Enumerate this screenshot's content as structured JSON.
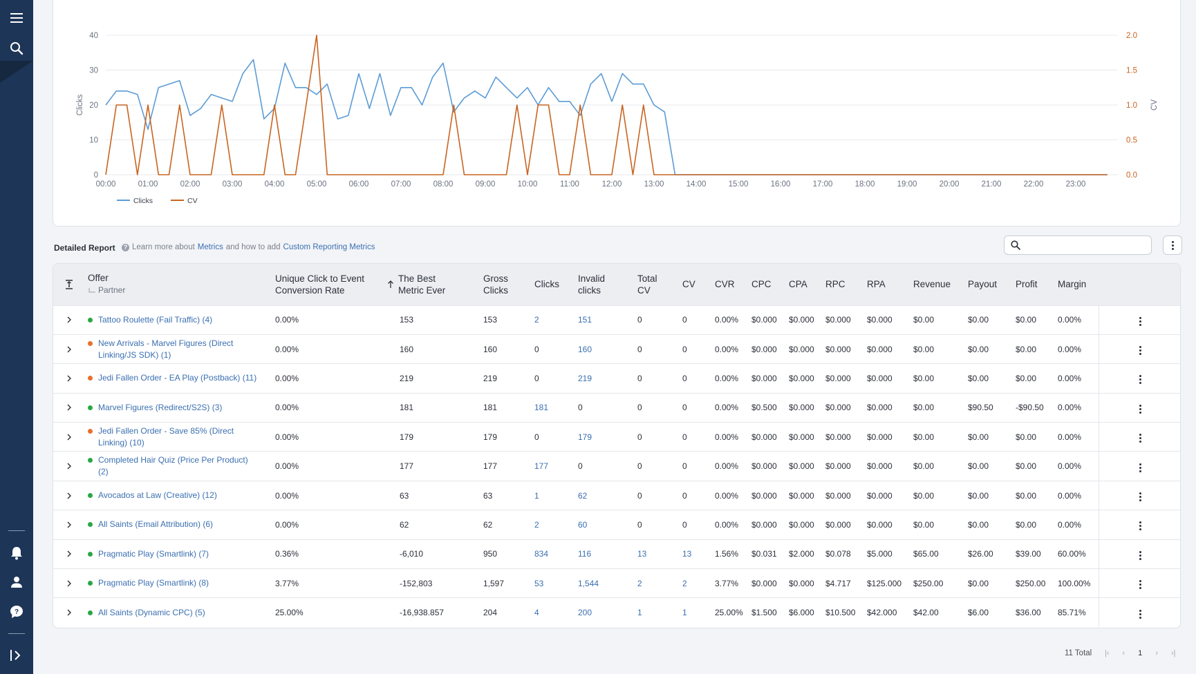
{
  "colors": {
    "sidebar": "#1d3557",
    "clicks_line": "#5b9bd5",
    "cv_line": "#c8641f",
    "link": "#3a6fb0",
    "status_green": "#28a745",
    "status_orange": "#e8702a"
  },
  "sidebar": {
    "icons": [
      "hamburger-menu-icon",
      "search-icon",
      "bell-icon",
      "user-icon",
      "help-icon",
      "expand-sidebar-icon"
    ]
  },
  "chart_data": {
    "type": "line",
    "x": [
      "00:00",
      "00:15",
      "00:30",
      "00:45",
      "01:00",
      "01:15",
      "01:30",
      "01:45",
      "02:00",
      "02:15",
      "02:30",
      "02:45",
      "03:00",
      "03:15",
      "03:30",
      "03:45",
      "04:00",
      "04:15",
      "04:30",
      "04:45",
      "05:00",
      "05:15",
      "05:30",
      "05:45",
      "06:00",
      "06:15",
      "06:30",
      "06:45",
      "07:00",
      "07:15",
      "07:30",
      "07:45",
      "08:00",
      "08:15",
      "08:30",
      "08:45",
      "09:00",
      "09:15",
      "09:30",
      "09:45",
      "10:00",
      "10:15",
      "10:30",
      "10:45",
      "11:00",
      "11:15",
      "11:30",
      "11:45",
      "12:00",
      "12:15",
      "12:30",
      "12:45",
      "13:00",
      "13:15",
      "13:30",
      "13:45",
      "14:00",
      "14:15",
      "14:30",
      "14:45",
      "15:00",
      "15:15",
      "15:30",
      "15:45",
      "16:00",
      "16:15",
      "16:30",
      "16:45",
      "17:00",
      "17:15",
      "17:30",
      "17:45",
      "18:00",
      "18:15",
      "18:30",
      "18:45",
      "19:00",
      "19:15",
      "19:30",
      "19:45",
      "20:00",
      "20:15",
      "20:30",
      "20:45",
      "21:00",
      "21:15",
      "21:30",
      "21:45",
      "22:00",
      "22:15",
      "22:30",
      "22:45",
      "23:00",
      "23:15",
      "23:30",
      "23:45"
    ],
    "x_ticks": [
      "00:00",
      "01:00",
      "02:00",
      "03:00",
      "04:00",
      "05:00",
      "06:00",
      "07:00",
      "08:00",
      "09:00",
      "10:00",
      "11:00",
      "12:00",
      "13:00",
      "14:00",
      "15:00",
      "16:00",
      "17:00",
      "18:00",
      "19:00",
      "20:00",
      "21:00",
      "22:00",
      "23:00"
    ],
    "series": [
      {
        "name": "Clicks",
        "axis": "left",
        "values": [
          20,
          24,
          24,
          23,
          13,
          25,
          26,
          27,
          17,
          19,
          23,
          22,
          21,
          29,
          33,
          16,
          19,
          32,
          25,
          25,
          23,
          26,
          16,
          17,
          29,
          19,
          29,
          17,
          25,
          25,
          20,
          28,
          32,
          18,
          22,
          24,
          22,
          28,
          25,
          22,
          25,
          20,
          25,
          21,
          21,
          17,
          26,
          29,
          21,
          29,
          26,
          26,
          20,
          18,
          0,
          0,
          0,
          0,
          0,
          0,
          0,
          0,
          0,
          0,
          0,
          0,
          0,
          0,
          0,
          0,
          0,
          0,
          0,
          0,
          0,
          0,
          0,
          0,
          0,
          0,
          0,
          0,
          0,
          0,
          0,
          0,
          0,
          0,
          0,
          0,
          0,
          0,
          0,
          0,
          0,
          0
        ]
      },
      {
        "name": "CV",
        "axis": "right",
        "values": [
          0,
          1,
          1,
          0,
          1,
          0,
          0,
          1,
          0,
          0,
          0,
          1,
          0,
          0,
          0,
          0,
          1,
          0,
          0,
          1,
          2,
          0,
          0,
          0,
          0,
          0,
          0,
          0,
          0,
          0,
          0,
          0,
          0,
          1,
          0,
          0,
          0,
          0,
          0,
          1,
          0,
          1,
          1,
          0,
          0,
          1,
          0,
          0,
          0,
          1,
          0,
          1,
          0,
          0,
          0,
          0,
          0,
          0,
          0,
          0,
          0,
          0,
          0,
          0,
          0,
          0,
          0,
          0,
          0,
          0,
          0,
          0,
          0,
          0,
          0,
          0,
          0,
          0,
          0,
          0,
          0,
          0,
          0,
          0,
          0,
          0,
          0,
          0,
          0,
          0,
          0,
          0,
          0,
          0,
          0,
          0
        ]
      }
    ],
    "ylabel": "Clicks",
    "ylim": [
      0,
      40
    ],
    "y_ticks": [
      "0",
      "10",
      "20",
      "30",
      "40"
    ],
    "y2label": "CV",
    "y2lim": [
      0,
      2.0
    ],
    "y2_ticks": [
      "0.0",
      "0.5",
      "1.0",
      "1.5",
      "2.0"
    ],
    "legend": [
      "Clicks",
      "CV"
    ],
    "legend_placement": "bottom-left",
    "grid": true
  },
  "report": {
    "title": "Detailed Report",
    "help_prefix": "Learn more about",
    "help_link1": "Metrics",
    "help_middle": "and how to add",
    "help_link2": "Custom Reporting Metrics",
    "search_placeholder": ""
  },
  "table": {
    "headers": {
      "offer": "Offer",
      "partner": "Partner",
      "unique_ctr": "Unique Click to Event Conversion Rate",
      "best_metric": "The Best Metric Ever",
      "gross_clicks": "Gross Clicks",
      "clicks": "Clicks",
      "invalid_clicks": "Invalid clicks",
      "total_cv": "Total CV",
      "cv": "CV",
      "cvr": "CVR",
      "cpc": "CPC",
      "cpa": "CPA",
      "rpc": "RPC",
      "rpa": "RPA",
      "revenue": "Revenue",
      "payout": "Payout",
      "profit": "Profit",
      "margin": "Margin"
    },
    "rows": [
      {
        "status": "green",
        "offer": "Tattoo Roulette (Fail Traffic) (4)",
        "unique_ctr": "0.00%",
        "best_metric": "153",
        "gross_clicks": "153",
        "clicks": "2",
        "invalid_clicks": "151",
        "total_cv": "0",
        "cv": "0",
        "cvr": "0.00%",
        "cpc": "$0.000",
        "cpa": "$0.000",
        "rpc": "$0.000",
        "rpa": "$0.000",
        "revenue": "$0.00",
        "payout": "$0.00",
        "profit": "$0.00",
        "margin": "0.00%"
      },
      {
        "status": "orange",
        "offer": "New Arrivals - Marvel Figures (Direct Linking/JS SDK) (1)",
        "unique_ctr": "0.00%",
        "best_metric": "160",
        "gross_clicks": "160",
        "clicks": "0",
        "invalid_clicks": "160",
        "total_cv": "0",
        "cv": "0",
        "cvr": "0.00%",
        "cpc": "$0.000",
        "cpa": "$0.000",
        "rpc": "$0.000",
        "rpa": "$0.000",
        "revenue": "$0.00",
        "payout": "$0.00",
        "profit": "$0.00",
        "margin": "0.00%"
      },
      {
        "status": "orange",
        "offer": "Jedi Fallen Order - EA Play (Postback) (11)",
        "unique_ctr": "0.00%",
        "best_metric": "219",
        "gross_clicks": "219",
        "clicks": "0",
        "invalid_clicks": "219",
        "total_cv": "0",
        "cv": "0",
        "cvr": "0.00%",
        "cpc": "$0.000",
        "cpa": "$0.000",
        "rpc": "$0.000",
        "rpa": "$0.000",
        "revenue": "$0.00",
        "payout": "$0.00",
        "profit": "$0.00",
        "margin": "0.00%"
      },
      {
        "status": "green",
        "offer": "Marvel Figures (Redirect/S2S) (3)",
        "unique_ctr": "0.00%",
        "best_metric": "181",
        "gross_clicks": "181",
        "clicks": "181",
        "invalid_clicks": "0",
        "total_cv": "0",
        "cv": "0",
        "cvr": "0.00%",
        "cpc": "$0.500",
        "cpa": "$0.000",
        "rpc": "$0.000",
        "rpa": "$0.000",
        "revenue": "$0.00",
        "payout": "$90.50",
        "profit": "-$90.50",
        "margin": "0.00%"
      },
      {
        "status": "orange",
        "offer": "Jedi Fallen Order - Save 85% (Direct Linking) (10)",
        "unique_ctr": "0.00%",
        "best_metric": "179",
        "gross_clicks": "179",
        "clicks": "0",
        "invalid_clicks": "179",
        "total_cv": "0",
        "cv": "0",
        "cvr": "0.00%",
        "cpc": "$0.000",
        "cpa": "$0.000",
        "rpc": "$0.000",
        "rpa": "$0.000",
        "revenue": "$0.00",
        "payout": "$0.00",
        "profit": "$0.00",
        "margin": "0.00%"
      },
      {
        "status": "green",
        "offer": "Completed Hair Quiz (Price Per Product) (2)",
        "unique_ctr": "0.00%",
        "best_metric": "177",
        "gross_clicks": "177",
        "clicks": "177",
        "invalid_clicks": "0",
        "total_cv": "0",
        "cv": "0",
        "cvr": "0.00%",
        "cpc": "$0.000",
        "cpa": "$0.000",
        "rpc": "$0.000",
        "rpa": "$0.000",
        "revenue": "$0.00",
        "payout": "$0.00",
        "profit": "$0.00",
        "margin": "0.00%"
      },
      {
        "status": "green",
        "offer": "Avocados at Law (Creative) (12)",
        "unique_ctr": "0.00%",
        "best_metric": "63",
        "gross_clicks": "63",
        "clicks": "1",
        "invalid_clicks": "62",
        "total_cv": "0",
        "cv": "0",
        "cvr": "0.00%",
        "cpc": "$0.000",
        "cpa": "$0.000",
        "rpc": "$0.000",
        "rpa": "$0.000",
        "revenue": "$0.00",
        "payout": "$0.00",
        "profit": "$0.00",
        "margin": "0.00%"
      },
      {
        "status": "green",
        "offer": "All Saints (Email Attribution) (6)",
        "unique_ctr": "0.00%",
        "best_metric": "62",
        "gross_clicks": "62",
        "clicks": "2",
        "invalid_clicks": "60",
        "total_cv": "0",
        "cv": "0",
        "cvr": "0.00%",
        "cpc": "$0.000",
        "cpa": "$0.000",
        "rpc": "$0.000",
        "rpa": "$0.000",
        "revenue": "$0.00",
        "payout": "$0.00",
        "profit": "$0.00",
        "margin": "0.00%"
      },
      {
        "status": "green",
        "offer": "Pragmatic Play (Smartlink) (7)",
        "unique_ctr": "0.36%",
        "best_metric": "-6,010",
        "gross_clicks": "950",
        "clicks": "834",
        "invalid_clicks": "116",
        "total_cv": "13",
        "cv": "13",
        "cvr": "1.56%",
        "cpc": "$0.031",
        "cpa": "$2.000",
        "rpc": "$0.078",
        "rpa": "$5.000",
        "revenue": "$65.00",
        "payout": "$26.00",
        "profit": "$39.00",
        "margin": "60.00%"
      },
      {
        "status": "green",
        "offer": "Pragmatic Play (Smartlink) (8)",
        "unique_ctr": "3.77%",
        "best_metric": "-152,803",
        "gross_clicks": "1,597",
        "clicks": "53",
        "invalid_clicks": "1,544",
        "total_cv": "2",
        "cv": "2",
        "cvr": "3.77%",
        "cpc": "$0.000",
        "cpa": "$0.000",
        "rpc": "$4.717",
        "rpa": "$125.000",
        "revenue": "$250.00",
        "payout": "$0.00",
        "profit": "$250.00",
        "margin": "100.00%"
      },
      {
        "status": "green",
        "offer": "All Saints (Dynamic CPC) (5)",
        "unique_ctr": "25.00%",
        "best_metric": "-16,938.857",
        "gross_clicks": "204",
        "clicks": "4",
        "invalid_clicks": "200",
        "total_cv": "1",
        "cv": "1",
        "cvr": "25.00%",
        "cpc": "$1.500",
        "cpa": "$6.000",
        "rpc": "$10.500",
        "rpa": "$42.000",
        "revenue": "$42.00",
        "payout": "$6.00",
        "profit": "$36.00",
        "margin": "85.71%"
      }
    ]
  },
  "pagination": {
    "total_label": "11 Total",
    "current_page": "1"
  }
}
